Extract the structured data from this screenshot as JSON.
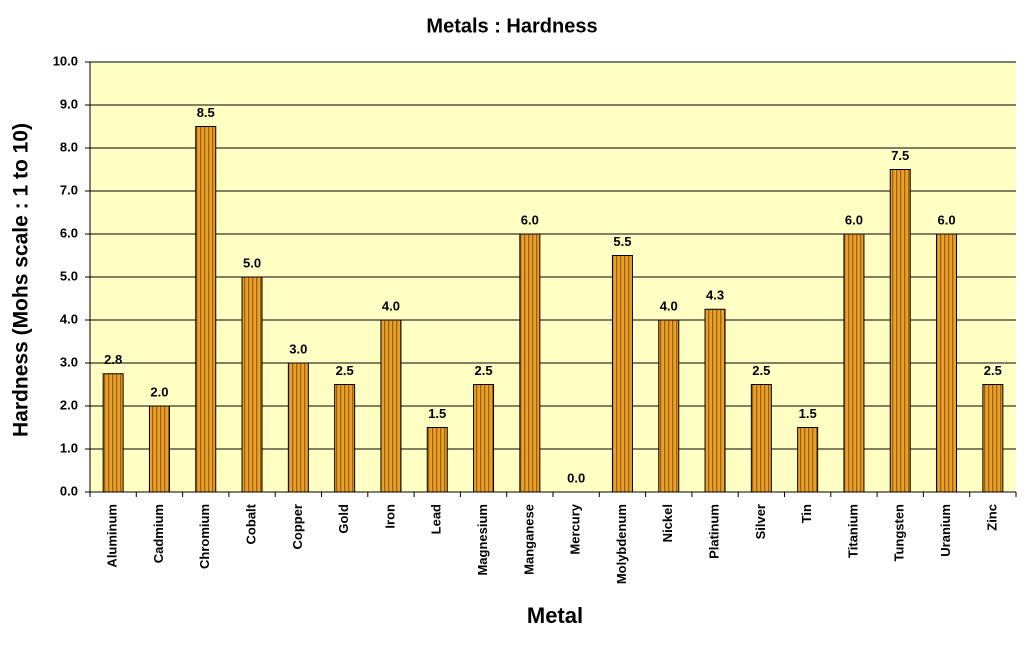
{
  "chart_data": {
    "type": "bar",
    "title": "Metals : Hardness",
    "x_label": "Metal",
    "y_label": "Hardness (Mohs scale : 1 to 10)",
    "categories": [
      "Aluminum",
      "Cadmium",
      "Chromium",
      "Cobalt",
      "Copper",
      "Gold",
      "Iron",
      "Lead",
      "Magnesium",
      "Manganese",
      "Mercury",
      "Molybdenum",
      "Nickel",
      "Platinum",
      "Silver",
      "Tin",
      "Titanium",
      "Tungsten",
      "Uranium",
      "Zinc"
    ],
    "values": [
      2.75,
      2,
      8.5,
      5,
      3,
      2.5,
      4,
      1.5,
      2.5,
      6,
      0,
      5.5,
      4,
      4.25,
      2.5,
      1.5,
      6,
      7.5,
      6,
      2.5
    ],
    "value_labels": [
      "2.8",
      "2.0",
      "8.5",
      "5.0",
      "3.0",
      "2.5",
      "4.0",
      "1.5",
      "2.5",
      "6.0",
      "0.0",
      "5.5",
      "4.0",
      "4.3",
      "2.5",
      "1.5",
      "6.0",
      "7.5",
      "6.0",
      "2.5"
    ],
    "color": "#e8a12a",
    "ylim": [
      0,
      10
    ],
    "yticks": [
      {
        "value": 0,
        "label": "0.0"
      },
      {
        "value": 1,
        "label": "1.0"
      },
      {
        "value": 2,
        "label": "2.0"
      },
      {
        "value": 3,
        "label": "3.0"
      },
      {
        "value": 4,
        "label": "4.0"
      },
      {
        "value": 5,
        "label": "5.0"
      },
      {
        "value": 6,
        "label": "6.0"
      },
      {
        "value": 7,
        "label": "7.0"
      },
      {
        "value": 8,
        "label": "8.0"
      },
      {
        "value": 9,
        "label": "9.0"
      },
      {
        "value": 10,
        "label": "10.0"
      }
    ],
    "grid": true
  }
}
